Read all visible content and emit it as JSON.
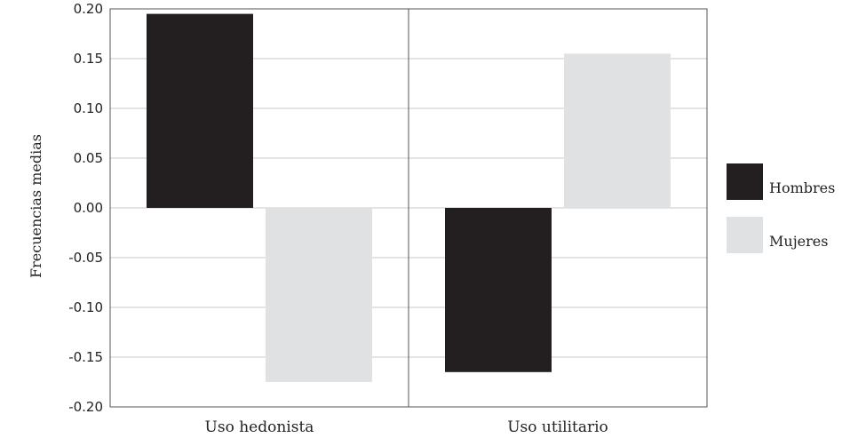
{
  "chart_data": {
    "type": "bar",
    "title": "",
    "xlabel": "",
    "ylabel": "Frecuencias medias",
    "categories": [
      "Uso hedonista",
      "Uso utilitario"
    ],
    "series": [
      {
        "name": "Hombres",
        "values": [
          0.195,
          -0.165
        ],
        "color": "#231f20"
      },
      {
        "name": "Mujeres",
        "values": [
          -0.175,
          0.155
        ],
        "color": "#e0e1e3"
      }
    ],
    "ylim": [
      -0.2,
      0.2
    ],
    "yticks": [
      "0.20",
      "0.15",
      "0.10",
      "0.05",
      "0.00",
      "-0.05",
      "-0.10",
      "-0.15",
      "-0.20"
    ],
    "grid": true,
    "legend_position": "right"
  }
}
